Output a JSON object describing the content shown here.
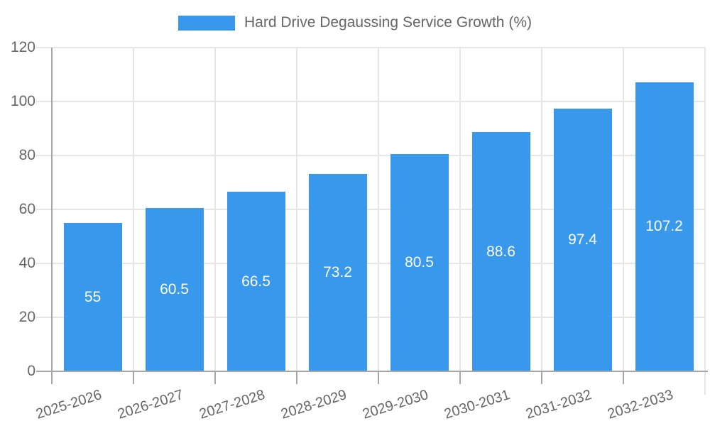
{
  "chart_data": {
    "type": "bar",
    "title": "Hard Drive Degaussing Service Growth (%)",
    "categories": [
      "2025-2026",
      "2026-2027",
      "2027-2028",
      "2028-2029",
      "2029-2030",
      "2030-2031",
      "2031-2032",
      "2032-2033"
    ],
    "series": [
      {
        "name": "Hard Drive Degaussing Service Growth (%)",
        "values": [
          55,
          60.5,
          66.5,
          73.2,
          80.5,
          88.6,
          97.4,
          107.2
        ]
      }
    ],
    "xlabel": "",
    "ylabel": "",
    "ylim": [
      0,
      120
    ],
    "yticks": [
      0,
      20,
      40,
      60,
      80,
      100,
      120
    ],
    "grid": "on",
    "legend_position": "top-center",
    "value_labels_position": "inside-center",
    "x_label_rotation_deg": -17.5,
    "colors": {
      "bar": "#3899ec",
      "bar_value_label": "#ffffff",
      "axis_line": "#a6a6a6",
      "gridline": "#e6e6e6",
      "tick_text": "#666666",
      "legend_text": "#666666",
      "background": "#ffffff"
    }
  }
}
